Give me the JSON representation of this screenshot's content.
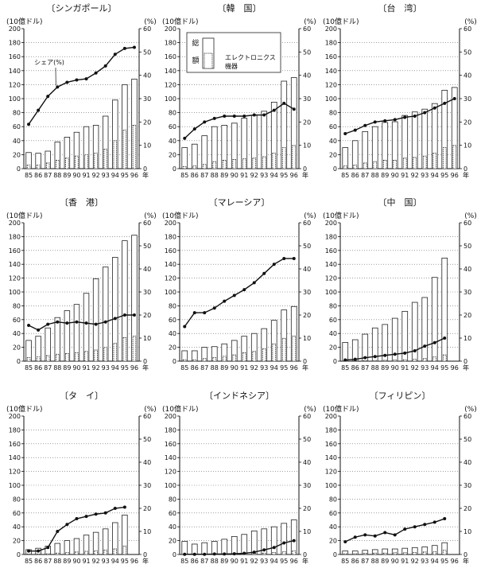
{
  "chart_data": [
    {
      "type": "bar+line",
      "title": "〔シンガポール〕",
      "left_unit": "(10億ドル)",
      "right_unit": "(%)",
      "ylim_left": [
        0,
        200
      ],
      "ylim_right": [
        0,
        60
      ],
      "categories": [
        "85",
        "86",
        "87",
        "88",
        "89",
        "90",
        "91",
        "92",
        "93",
        "94",
        "95",
        "96"
      ],
      "series": [
        {
          "name": "総額",
          "type": "bar",
          "values": [
            23,
            22,
            25,
            38,
            45,
            52,
            60,
            62,
            75,
            98,
            120,
            128
          ]
        },
        {
          "name": "エレクトロニクス機器",
          "type": "bar",
          "values": [
            5,
            5,
            8,
            12,
            15,
            18,
            20,
            22,
            28,
            40,
            55,
            62
          ]
        },
        {
          "name": "シェア(%)",
          "type": "line",
          "axis": "right",
          "values": [
            19,
            25,
            31,
            35,
            37,
            38,
            38.5,
            41,
            44,
            49,
            51.5,
            52
          ]
        }
      ]
    },
    {
      "type": "bar+line",
      "title": "〔韓　国〕",
      "left_unit": "(10億ドル)",
      "right_unit": "(%)",
      "ylim_left": [
        0,
        200
      ],
      "ylim_right": [
        0,
        60
      ],
      "categories": [
        "85",
        "86",
        "87",
        "88",
        "89",
        "90",
        "91",
        "92",
        "93",
        "94",
        "95",
        "96"
      ],
      "series": [
        {
          "name": "総額",
          "type": "bar",
          "values": [
            30,
            35,
            47,
            60,
            62,
            65,
            72,
            76,
            82,
            95,
            125,
            130
          ]
        },
        {
          "name": "エレクトロニクス機器",
          "type": "bar",
          "values": [
            3,
            4,
            6,
            10,
            12,
            13,
            14,
            15,
            17,
            22,
            30,
            33
          ]
        },
        {
          "name": "シェア(%)",
          "type": "line",
          "axis": "right",
          "values": [
            13,
            17,
            20,
            21.5,
            22.5,
            22.5,
            22.5,
            23,
            23,
            25,
            28,
            25.5
          ]
        }
      ]
    },
    {
      "type": "bar+line",
      "title": "〔台　湾〕",
      "left_unit": "(10億ドル)",
      "right_unit": "(%)",
      "ylim_left": [
        0,
        200
      ],
      "ylim_right": [
        0,
        60
      ],
      "categories": [
        "85",
        "86",
        "87",
        "88",
        "89",
        "90",
        "91",
        "92",
        "93",
        "94",
        "95",
        "96"
      ],
      "series": [
        {
          "name": "総額",
          "type": "bar",
          "values": [
            30,
            40,
            53,
            60,
            66,
            67,
            76,
            81,
            85,
            93,
            112,
            116
          ]
        },
        {
          "name": "エレクトロニクス機器",
          "type": "bar",
          "values": [
            4,
            5,
            8,
            10,
            12,
            12,
            15,
            16,
            18,
            22,
            30,
            33
          ]
        },
        {
          "name": "シェア(%)",
          "type": "line",
          "axis": "right",
          "values": [
            15,
            16.5,
            18.5,
            20,
            20.5,
            21,
            22,
            22.5,
            24,
            26,
            28,
            30
          ]
        }
      ]
    },
    {
      "type": "bar+line",
      "title": "〔香　港〕",
      "left_unit": "(10億ドル)",
      "right_unit": "(%)",
      "ylim_left": [
        0,
        200
      ],
      "ylim_right": [
        0,
        60
      ],
      "categories": [
        "85",
        "86",
        "87",
        "88",
        "89",
        "90",
        "91",
        "92",
        "93",
        "94",
        "95",
        "96"
      ],
      "series": [
        {
          "name": "総額",
          "type": "bar",
          "values": [
            30,
            36,
            48,
            63,
            73,
            82,
            98,
            119,
            136,
            150,
            174,
            182
          ]
        },
        {
          "name": "エレクトロニクス機器",
          "type": "bar",
          "values": [
            5,
            6,
            8,
            10,
            11,
            12,
            14,
            16,
            20,
            26,
            34,
            36
          ]
        },
        {
          "name": "シェア(%)",
          "type": "line",
          "axis": "right",
          "values": [
            15.5,
            13.5,
            16,
            17,
            16.5,
            17,
            16.5,
            16,
            17,
            18.5,
            20,
            20
          ]
        }
      ]
    },
    {
      "type": "bar+line",
      "title": "〔マレーシア〕",
      "left_unit": "(10億ドル)",
      "right_unit": "(%)",
      "ylim_left": [
        0,
        200
      ],
      "ylim_right": [
        0,
        60
      ],
      "categories": [
        "85",
        "86",
        "87",
        "88",
        "89",
        "90",
        "91",
        "92",
        "93",
        "94",
        "95",
        "96"
      ],
      "series": [
        {
          "name": "総額",
          "type": "bar",
          "values": [
            15,
            15,
            20,
            21,
            25,
            30,
            36,
            40,
            47,
            59,
            74,
            79
          ]
        },
        {
          "name": "エレクトロニクス機器",
          "type": "bar",
          "values": [
            2,
            2,
            4,
            5,
            7,
            9,
            12,
            14,
            18,
            25,
            33,
            36
          ]
        },
        {
          "name": "シェア(%)",
          "type": "line",
          "axis": "right",
          "values": [
            15,
            21,
            21,
            23,
            26,
            28.5,
            31,
            34,
            38,
            42,
            44.5,
            44.5
          ]
        }
      ]
    },
    {
      "type": "bar+line",
      "title": "〔中　国〕",
      "left_unit": "(10億ドル)",
      "right_unit": "(%)",
      "ylim_left": [
        0,
        200
      ],
      "ylim_right": [
        0,
        60
      ],
      "categories": [
        "85",
        "86",
        "87",
        "88",
        "89",
        "90",
        "91",
        "92",
        "93",
        "94",
        "95",
        "96"
      ],
      "series": [
        {
          "name": "総額",
          "type": "bar",
          "values": [
            27,
            31,
            39,
            48,
            53,
            62,
            72,
            85,
            92,
            121,
            149,
            null
          ]
        },
        {
          "name": "エレクトロニクス機器",
          "type": "bar",
          "values": [
            0.5,
            0.5,
            0.7,
            1,
            1.2,
            1.5,
            2,
            3,
            4,
            6,
            9,
            null
          ]
        },
        {
          "name": "シェア(%)",
          "type": "line",
          "axis": "right",
          "values": [
            0.5,
            0.8,
            1.5,
            2,
            2.5,
            3,
            3.5,
            4.5,
            6.5,
            8,
            10,
            null
          ]
        }
      ]
    },
    {
      "type": "bar+line",
      "title": "〔タ　イ〕",
      "left_unit": "(10億ドル)",
      "right_unit": "(%)",
      "ylim_left": [
        0,
        200
      ],
      "ylim_right": [
        0,
        60
      ],
      "categories": [
        "85",
        "86",
        "87",
        "88",
        "89",
        "90",
        "91",
        "92",
        "93",
        "94",
        "95",
        "96"
      ],
      "series": [
        {
          "name": "総額",
          "type": "bar",
          "values": [
            7,
            9,
            12,
            16,
            20,
            23,
            28,
            32,
            37,
            46,
            57,
            null
          ]
        },
        {
          "name": "エレクトロニクス機器",
          "type": "bar",
          "values": [
            0.5,
            0.5,
            1,
            2,
            3,
            3.5,
            4.5,
            5.5,
            6.5,
            8,
            12,
            null
          ]
        },
        {
          "name": "シェア(%)",
          "type": "line",
          "axis": "right",
          "values": [
            1.5,
            1.5,
            3,
            10,
            13,
            15.5,
            16.5,
            17.5,
            18,
            20,
            20.5,
            null
          ]
        }
      ]
    },
    {
      "type": "bar+line",
      "title": "〔インドネシア〕",
      "left_unit": "(10億ドル)",
      "right_unit": "(%)",
      "ylim_left": [
        0,
        200
      ],
      "ylim_right": [
        0,
        60
      ],
      "categories": [
        "85",
        "86",
        "87",
        "88",
        "89",
        "90",
        "91",
        "92",
        "93",
        "94",
        "95",
        "96"
      ],
      "series": [
        {
          "name": "総額",
          "type": "bar",
          "values": [
            19,
            15,
            17,
            19,
            22,
            26,
            29,
            34,
            37,
            40,
            45,
            50
          ]
        },
        {
          "name": "エレクトロニクス機器",
          "type": "bar",
          "values": [
            0.2,
            0.2,
            0.2,
            0.3,
            0.3,
            0.5,
            1,
            1.5,
            2,
            3,
            4,
            5
          ]
        },
        {
          "name": "シェア(%)",
          "type": "line",
          "axis": "right",
          "values": [
            0.1,
            0.1,
            0.1,
            0.2,
            0.2,
            0.3,
            0.5,
            1,
            2,
            3,
            5,
            6
          ]
        }
      ]
    },
    {
      "type": "bar+line",
      "title": "〔フィリピン〕",
      "left_unit": "(10億ドル)",
      "right_unit": "(%)",
      "ylim_left": [
        0,
        200
      ],
      "ylim_right": [
        0,
        60
      ],
      "categories": [
        "85",
        "86",
        "87",
        "88",
        "89",
        "90",
        "91",
        "92",
        "93",
        "94",
        "95",
        "96"
      ],
      "series": [
        {
          "name": "総額",
          "type": "bar",
          "values": [
            5,
            5,
            6,
            7,
            8,
            8,
            9,
            10,
            11,
            13,
            17,
            null
          ]
        },
        {
          "name": "エレクトロニクス機器",
          "type": "bar",
          "values": [
            1,
            1,
            1.5,
            2,
            2,
            2.5,
            2.5,
            3,
            3.5,
            4,
            6,
            null
          ]
        },
        {
          "name": "シェア(%)",
          "type": "line",
          "axis": "right",
          "values": [
            5.5,
            7.5,
            8.5,
            8,
            9.5,
            8.5,
            11,
            12,
            13,
            14,
            15.5,
            null
          ]
        }
      ]
    }
  ],
  "legend": {
    "total_label": "総額",
    "total_label_line1": "総",
    "total_label_line2": "額",
    "electronics_label": "エレクトロニクス機器",
    "electronics_line1": "エレクトロニクス",
    "electronics_line2": "機器"
  },
  "share_annotation": "シェア(%)",
  "year_suffix": "年",
  "left_ticks": [
    "200",
    "180",
    "160",
    "140",
    "120",
    "100",
    "80",
    "60",
    "40",
    "20",
    "0"
  ],
  "right_ticks": [
    "60",
    "50",
    "40",
    "30",
    "20",
    "10",
    "0"
  ]
}
